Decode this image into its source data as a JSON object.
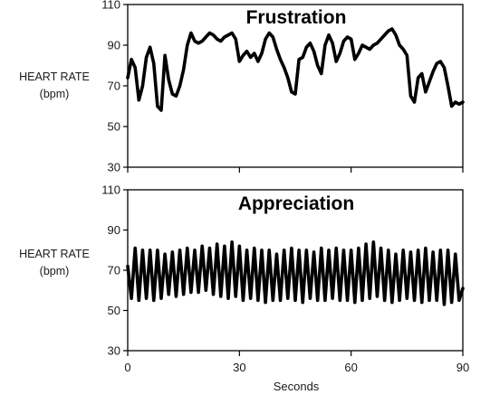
{
  "chart_data": [
    {
      "type": "line",
      "title": "Frustration",
      "ylabel_line1": "HEART RATE",
      "ylabel_line2": "(bpm)",
      "xlabel": "",
      "xlim": [
        0,
        90
      ],
      "ylim": [
        30,
        110
      ],
      "yticks": [
        30,
        50,
        70,
        90,
        110
      ],
      "xticks": [
        0,
        30,
        60,
        90
      ],
      "show_xtick_labels": false,
      "grid": false,
      "line_color": "#000000",
      "series": [
        {
          "x": [
            0,
            1,
            2,
            3,
            4,
            5,
            6,
            7,
            8,
            9,
            10,
            11,
            12,
            13,
            14,
            15,
            16,
            17,
            18,
            19,
            20,
            21,
            22,
            23,
            24,
            25,
            26,
            27,
            28,
            29,
            30,
            31,
            32,
            33,
            34,
            35,
            36,
            37,
            38,
            39,
            40,
            41,
            42,
            43,
            44,
            45,
            46,
            47,
            48,
            49,
            50,
            51,
            52,
            53,
            54,
            55,
            56,
            57,
            58,
            59,
            60,
            61,
            62,
            63,
            64,
            65,
            66,
            67,
            68,
            69,
            70,
            71,
            72,
            73,
            74,
            75,
            76,
            77,
            78,
            79,
            80,
            81,
            82,
            83,
            84,
            85,
            86,
            87,
            88,
            89,
            90
          ],
          "values": [
            74,
            83,
            79,
            63,
            70,
            84,
            89,
            81,
            60,
            58,
            85,
            73,
            66,
            65,
            70,
            78,
            90,
            96,
            92,
            91,
            92,
            94,
            96,
            95,
            93,
            92,
            94,
            95,
            96,
            93,
            82,
            85,
            87,
            84,
            86,
            82,
            86,
            93,
            96,
            94,
            88,
            83,
            79,
            74,
            67,
            66,
            83,
            84,
            89,
            91,
            87,
            80,
            76,
            90,
            95,
            91,
            82,
            86,
            92,
            94,
            93,
            83,
            86,
            90,
            89,
            88,
            90,
            91,
            93,
            95,
            97,
            98,
            95,
            90,
            88,
            85,
            65,
            62,
            74,
            76,
            67,
            72,
            77,
            81,
            82,
            79,
            70,
            60,
            62,
            61,
            62
          ]
        }
      ]
    },
    {
      "type": "line",
      "title": "Appreciation",
      "ylabel_line1": "HEART RATE",
      "ylabel_line2": "(bpm)",
      "xlabel": "Seconds",
      "xlim": [
        0,
        90
      ],
      "ylim": [
        30,
        110
      ],
      "yticks": [
        30,
        50,
        70,
        90,
        110
      ],
      "xticks": [
        0,
        30,
        60,
        90
      ],
      "show_xtick_labels": true,
      "grid": false,
      "line_color": "#000000",
      "series": [
        {
          "x": [
            0,
            1,
            2,
            3,
            4,
            5,
            6,
            7,
            8,
            9,
            10,
            11,
            12,
            13,
            14,
            15,
            16,
            17,
            18,
            19,
            20,
            21,
            22,
            23,
            24,
            25,
            26,
            27,
            28,
            29,
            30,
            31,
            32,
            33,
            34,
            35,
            36,
            37,
            38,
            39,
            40,
            41,
            42,
            43,
            44,
            45,
            46,
            47,
            48,
            49,
            50,
            51,
            52,
            53,
            54,
            55,
            56,
            57,
            58,
            59,
            60,
            61,
            62,
            63,
            64,
            65,
            66,
            67,
            68,
            69,
            70,
            71,
            72,
            73,
            74,
            75,
            76,
            77,
            78,
            79,
            80,
            81,
            82,
            83,
            84,
            85,
            86,
            87,
            88,
            89,
            90
          ],
          "values": [
            72,
            56,
            81,
            55,
            80,
            56,
            80,
            55,
            80,
            56,
            78,
            58,
            79,
            57,
            80,
            58,
            81,
            59,
            80,
            59,
            82,
            60,
            81,
            58,
            83,
            57,
            82,
            56,
            84,
            57,
            82,
            55,
            80,
            56,
            81,
            55,
            80,
            54,
            80,
            55,
            78,
            55,
            80,
            56,
            81,
            55,
            80,
            54,
            80,
            56,
            79,
            55,
            81,
            55,
            80,
            56,
            81,
            55,
            80,
            55,
            80,
            54,
            81,
            55,
            83,
            56,
            84,
            57,
            81,
            55,
            80,
            54,
            78,
            55,
            80,
            56,
            79,
            55,
            80,
            54,
            81,
            55,
            79,
            55,
            80,
            53,
            80,
            54,
            78,
            55,
            61
          ]
        }
      ]
    }
  ]
}
